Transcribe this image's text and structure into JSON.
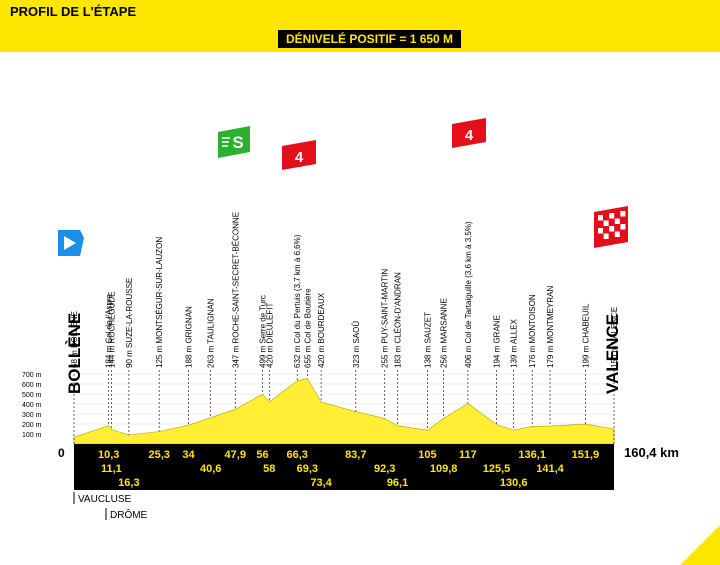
{
  "header": {
    "title": "PROFIL DE L'ÉTAPE",
    "climb": "DÉNIVELÉ POSITIF = 1 650 M"
  },
  "stage": {
    "total_distance": "160,4 km",
    "start_km": "0"
  },
  "towns": {
    "start": "BOLLÈNE",
    "finish": "VALENCE"
  },
  "markers": {
    "sprint": "S",
    "cat4a": "4",
    "cat4b": "4"
  },
  "regions": [
    "VAUCLUSE",
    "DRÔME"
  ],
  "axis_labels": [
    "700 m",
    "600 m",
    "500 m",
    "400 m",
    "300 m",
    "200 m",
    "100 m"
  ],
  "points": [
    {
      "label": "68 m BOLLÈNE",
      "km": 0,
      "alt": 68
    },
    {
      "label": "184 m Col de l'Aspre",
      "km": 10.3,
      "alt": 184
    },
    {
      "label": "144 m ROCHEGUDE",
      "km": 11.1,
      "alt": 144
    },
    {
      "label": "90 m SUZE-LA-ROUSSE",
      "km": 16.3,
      "alt": 90
    },
    {
      "label": "125 m MONTSÉGUR-SUR-LAUZON",
      "km": 25.3,
      "alt": 125
    },
    {
      "label": "188 m GRIGNAN",
      "km": 34,
      "alt": 188
    },
    {
      "label": "263 m TAULIGNAN",
      "km": 40.6,
      "alt": 263
    },
    {
      "label": "347 m ROCHE-SAINT-SECRET-BÉCONNE",
      "km": 47.9,
      "alt": 347
    },
    {
      "label": "499 m Serre de Turc",
      "km": 56,
      "alt": 499
    },
    {
      "label": "420 m DIEULEFIT",
      "km": 58,
      "alt": 420
    },
    {
      "label": "632 m Col du Pertuis (3,7 km à 6,6%)",
      "km": 66.3,
      "alt": 632
    },
    {
      "label": "655 m Col de Boutière",
      "km": 69.3,
      "alt": 655
    },
    {
      "label": "420 m BOURDEAUX",
      "km": 73.4,
      "alt": 420
    },
    {
      "label": "323 m SAOÛ",
      "km": 83.7,
      "alt": 323
    },
    {
      "label": "255 m PUY-SAINT-MARTIN",
      "km": 92.3,
      "alt": 255
    },
    {
      "label": "183 m CLÉON-D'ANDRAN",
      "km": 96.1,
      "alt": 183
    },
    {
      "label": "138 m SAUZET",
      "km": 105,
      "alt": 138
    },
    {
      "label": "256 m MARSANNE",
      "km": 109.8,
      "alt": 256
    },
    {
      "label": "406 m Col de Tartaiguille (3,6 km à 3,5%)",
      "km": 117,
      "alt": 406
    },
    {
      "label": "194 m GRANE",
      "km": 125.5,
      "alt": 194
    },
    {
      "label": "139 m ALLEX",
      "km": 130.6,
      "alt": 139
    },
    {
      "label": "176 m MONTOISON",
      "km": 136.1,
      "alt": 176
    },
    {
      "label": "179 m MONTMEYRAN",
      "km": 141.4,
      "alt": 179
    },
    {
      "label": "199 m CHABEUIL",
      "km": 151.9,
      "alt": 199
    },
    {
      "label": "150 m VALENCE",
      "km": 160.4,
      "alt": 150
    }
  ],
  "km_labels": [
    {
      "text": "10,3",
      "km": 10.3,
      "row": 0
    },
    {
      "text": "11,1",
      "km": 11.1,
      "row": 1
    },
    {
      "text": "16,3",
      "km": 16.3,
      "row": 2
    },
    {
      "text": "25,3",
      "km": 25.3,
      "row": 0
    },
    {
      "text": "34",
      "km": 34,
      "row": 0
    },
    {
      "text": "40,6",
      "km": 40.6,
      "row": 1
    },
    {
      "text": "47,9",
      "km": 47.9,
      "row": 0
    },
    {
      "text": "56",
      "km": 56,
      "row": 0
    },
    {
      "text": "58",
      "km": 58,
      "row": 1
    },
    {
      "text": "66,3",
      "km": 66.3,
      "row": 0
    },
    {
      "text": "69,3",
      "km": 69.3,
      "row": 1
    },
    {
      "text": "73,4",
      "km": 73.4,
      "row": 2
    },
    {
      "text": "83,7",
      "km": 83.7,
      "row": 0
    },
    {
      "text": "92,3",
      "km": 92.3,
      "row": 1
    },
    {
      "text": "96,1",
      "km": 96.1,
      "row": 2
    },
    {
      "text": "105",
      "km": 105,
      "row": 0
    },
    {
      "text": "109,8",
      "km": 109.8,
      "row": 1
    },
    {
      "text": "117",
      "km": 117,
      "row": 0
    },
    {
      "text": "125,5",
      "km": 125.5,
      "row": 1
    },
    {
      "text": "130,6",
      "km": 130.6,
      "row": 2
    },
    {
      "text": "136,1",
      "km": 136.1,
      "row": 0
    },
    {
      "text": "141,4",
      "km": 141.4,
      "row": 1
    },
    {
      "text": "151,9",
      "km": 151.9,
      "row": 0
    }
  ],
  "colors": {
    "brand_yellow": "#ffe600",
    "profile_fill": "#ffee33",
    "sprint_green": "#2bb12b",
    "climb_red": "#e3101c",
    "start_blue": "#1d8ee6"
  }
}
